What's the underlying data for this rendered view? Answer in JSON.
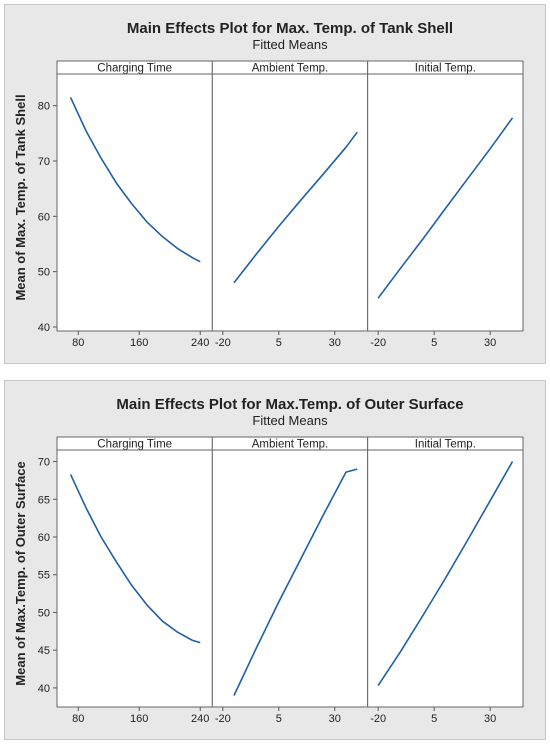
{
  "chart_data": [
    {
      "type": "line",
      "title": "Main Effects Plot for Max. Temp. of Tank Shell",
      "subtitle": "Fitted Means",
      "ylabel": "Mean of Max. Temp. of Tank Shell",
      "ylim": [
        40,
        85
      ],
      "yticks": [
        40,
        50,
        60,
        70,
        80
      ],
      "line_color": "#1f5fa8",
      "panels": [
        {
          "label": "Charging Time",
          "xlim": [
            60,
            248
          ],
          "xticks": [
            80,
            160,
            240
          ],
          "x": [
            70,
            90,
            110,
            130,
            150,
            170,
            190,
            210,
            230,
            240
          ],
          "y": [
            81.5,
            75.5,
            70.5,
            66.0,
            62.3,
            59.0,
            56.4,
            54.2,
            52.5,
            51.8
          ]
        },
        {
          "label": "Ambient Temp.",
          "xlim": [
            -22,
            42
          ],
          "xticks": [
            -20,
            5,
            30
          ],
          "x": [
            -15,
            -5,
            5,
            15,
            25,
            35,
            40
          ],
          "y": [
            48.0,
            53.2,
            58.2,
            63.0,
            67.7,
            72.5,
            75.2
          ]
        },
        {
          "label": "Initial Temp.",
          "xlim": [
            -22,
            42
          ],
          "xticks": [
            -20,
            5,
            30
          ],
          "x": [
            -20,
            -10,
            0,
            10,
            20,
            30,
            40
          ],
          "y": [
            45.2,
            50.6,
            55.9,
            61.4,
            66.8,
            72.2,
            77.8
          ]
        }
      ]
    },
    {
      "type": "line",
      "title": "Main Effects Plot for Max.Temp. of Outer Surface",
      "subtitle": "Fitted Means",
      "ylabel": "Mean of Max.Temp. of Outer Surface",
      "ylim": [
        38,
        71
      ],
      "yticks": [
        40,
        45,
        50,
        55,
        60,
        65,
        70
      ],
      "line_color": "#1f5fa8",
      "panels": [
        {
          "label": "Charging Time",
          "xlim": [
            60,
            248
          ],
          "xticks": [
            80,
            160,
            240
          ],
          "x": [
            70,
            90,
            110,
            130,
            150,
            170,
            190,
            210,
            230,
            240
          ],
          "y": [
            68.3,
            63.9,
            60.0,
            56.7,
            53.6,
            51.0,
            48.9,
            47.4,
            46.3,
            46.0
          ]
        },
        {
          "label": "Ambient Temp.",
          "xlim": [
            -22,
            42
          ],
          "xticks": [
            -20,
            5,
            30
          ],
          "x": [
            -15,
            -5,
            5,
            15,
            25,
            35,
            40
          ],
          "y": [
            39.0,
            45.3,
            51.4,
            57.2,
            63.0,
            68.6,
            69.0
          ]
        },
        {
          "label": "Initial Temp.",
          "xlim": [
            -22,
            42
          ],
          "xticks": [
            -20,
            5,
            30
          ],
          "x": [
            -20,
            -10,
            0,
            10,
            20,
            30,
            40
          ],
          "y": [
            40.3,
            44.8,
            49.6,
            54.5,
            59.6,
            64.8,
            70.0
          ]
        }
      ]
    }
  ]
}
